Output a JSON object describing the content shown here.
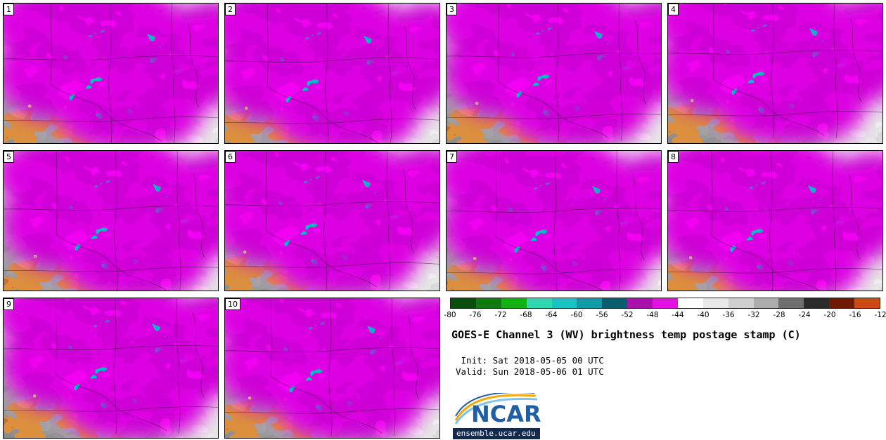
{
  "figure": {
    "title": "GOES-E Channel 3 (WV) brightness temp postage stamp (C)",
    "init_line": " Init: Sat 2018-05-05 00 UTC",
    "valid_line": "Valid: Sun 2018-05-06 01 UTC"
  },
  "panels": [
    {
      "label": "1"
    },
    {
      "label": "2"
    },
    {
      "label": "3"
    },
    {
      "label": "4"
    },
    {
      "label": "5"
    },
    {
      "label": "6"
    },
    {
      "label": "7"
    },
    {
      "label": "8"
    },
    {
      "label": "9"
    },
    {
      "label": "10"
    }
  ],
  "colorbar": {
    "ticks": [
      "-80",
      "-76",
      "-72",
      "-68",
      "-64",
      "-60",
      "-56",
      "-52",
      "-48",
      "-44",
      "-40",
      "-36",
      "-32",
      "-28",
      "-24",
      "-20",
      "-16",
      "-12"
    ],
    "segment_colors": [
      "#0B4D0B",
      "#0F7C0F",
      "#12B212",
      "#2FD6B0",
      "#19C3C3",
      "#0E9AA6",
      "#0A5F6E",
      "#AB12AB",
      "#E312E3",
      "#FFFFFF",
      "#E9E9E9",
      "#CFCFCF",
      "#ADADAD",
      "#6E6E6E",
      "#2B2B2B",
      "#6E1B00",
      "#CC4A14"
    ]
  },
  "logo": {
    "wordmark": "NCAR",
    "url_text": "ensemble.ucar.edu",
    "colors": {
      "wordmark_blue": "#1F5FA6",
      "bar_navy": "#14294E",
      "arc_orange": "#F5A800",
      "arc_light_blue": "#7FC4E8"
    }
  }
}
